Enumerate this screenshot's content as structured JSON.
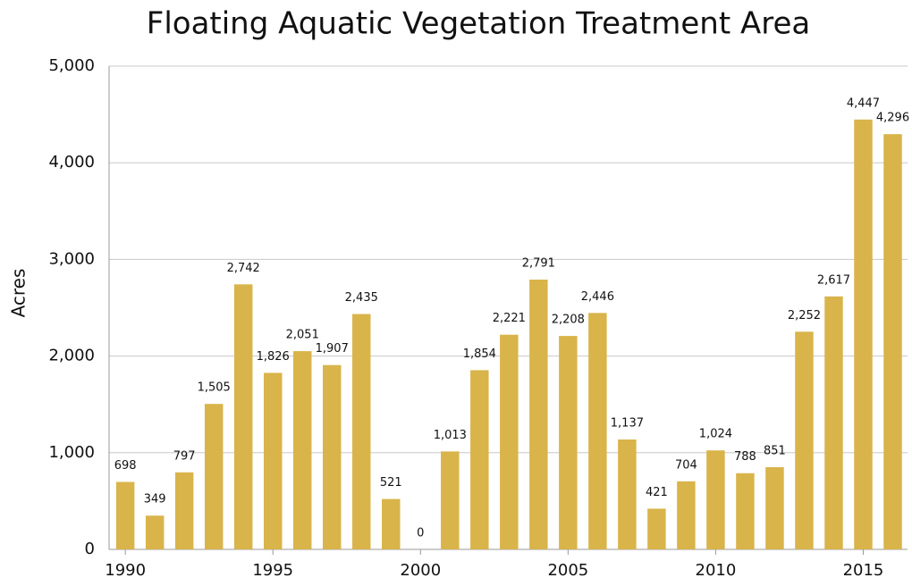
{
  "chart_data": {
    "type": "bar",
    "title": "Floating Aquatic Vegetation Treatment Area",
    "y_label": "Acres",
    "x": [
      1990,
      1991,
      1992,
      1993,
      1994,
      1995,
      1996,
      1997,
      1998,
      1999,
      2000,
      2001,
      2002,
      2003,
      2004,
      2005,
      2006,
      2007,
      2008,
      2009,
      2010,
      2011,
      2012,
      2013,
      2014,
      2015,
      2016
    ],
    "values": [
      698,
      349,
      797,
      1505,
      2742,
      1826,
      2051,
      1907,
      2435,
      521,
      0,
      1013,
      1854,
      2221,
      2791,
      2208,
      2446,
      1137,
      421,
      704,
      1024,
      788,
      851,
      2252,
      2617,
      4447,
      4296
    ],
    "value_labels": [
      "698",
      "349",
      "797",
      "1,505",
      "2,742",
      "1,826",
      "2,051",
      "1,907",
      "2,435",
      "521",
      "0",
      "1,013",
      "1,854",
      "2,221",
      "2,791",
      "2,208",
      "2,446",
      "1,137",
      "421",
      "704",
      "1,024",
      "788",
      "851",
      "2,252",
      "2,617",
      "4,447",
      "4,296"
    ],
    "color": "#d9b44a",
    "xlim": [
      1989.45,
      2016.5
    ],
    "xticks": [
      1990,
      1995,
      2000,
      2005,
      2010,
      2015
    ],
    "ylim": [
      0,
      5000
    ],
    "yticks": [
      0,
      {
        "value": 1000,
        "label": "1,000"
      },
      {
        "value": 2000,
        "label": "2,000"
      },
      {
        "value": 3000,
        "label": "3,000"
      },
      {
        "value": 4000,
        "label": "4,000"
      },
      {
        "value": 5000,
        "label": "5,000"
      }
    ],
    "grid": true
  }
}
